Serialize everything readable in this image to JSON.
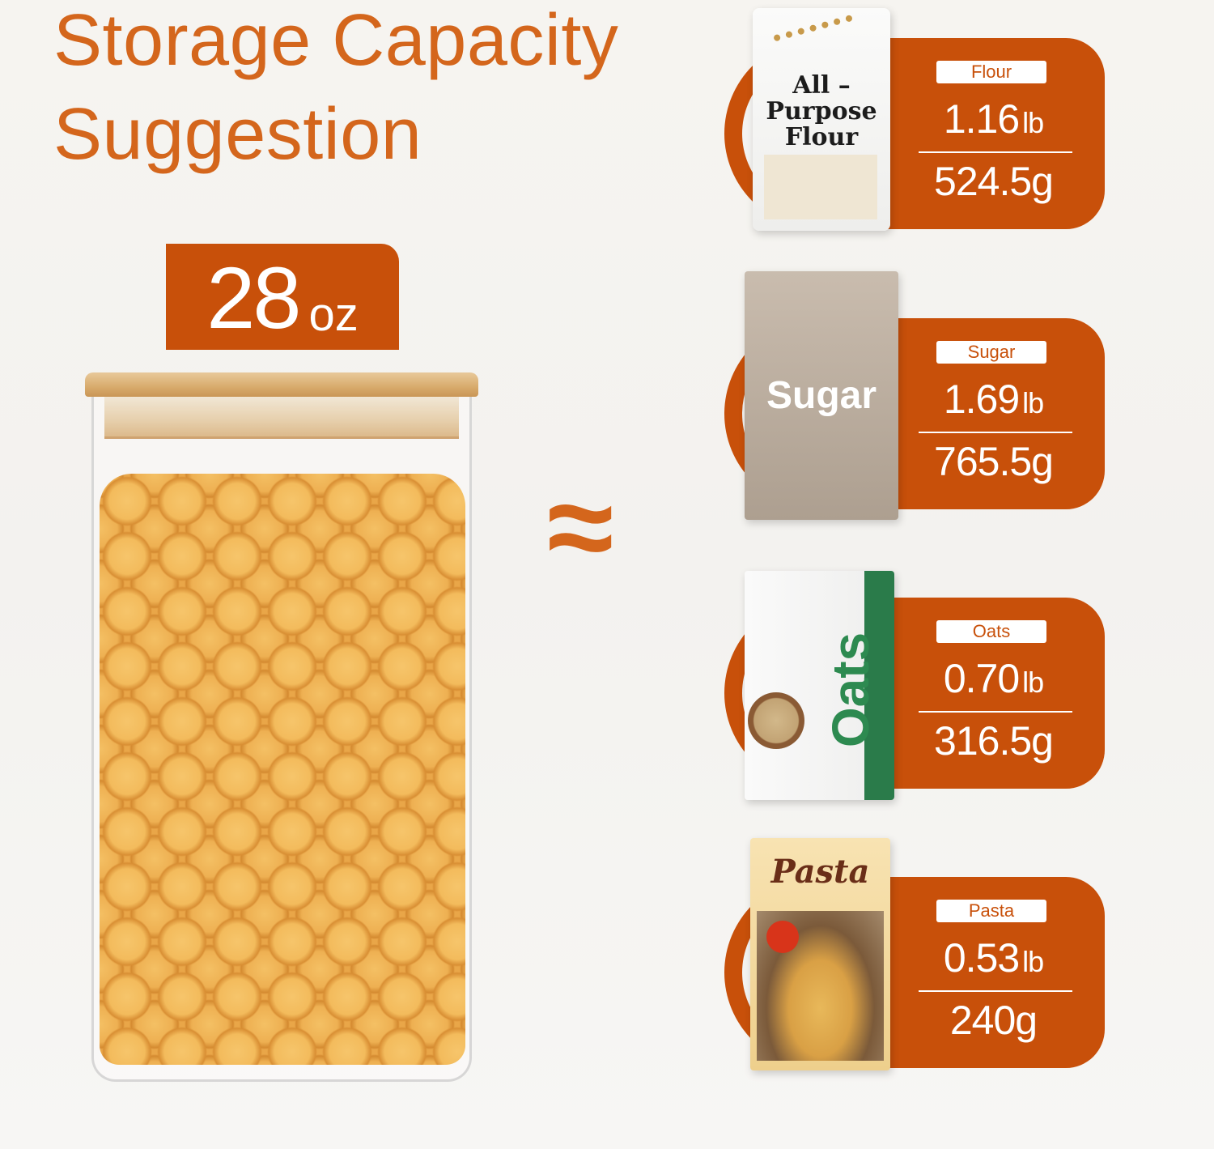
{
  "title": {
    "line1": "Storage Capacity",
    "line2": "Suggestion"
  },
  "capacity": {
    "value": "28",
    "unit": "oz"
  },
  "approx_symbol": "≈",
  "accent_color": "#c8500a",
  "title_color": "#d4661c",
  "items": [
    {
      "label": "Flour",
      "lb": "1.16",
      "lb_unit": "lb",
      "grams": "524.5g",
      "package_text": "All – Purpose Flour"
    },
    {
      "label": "Sugar",
      "lb": "1.69",
      "lb_unit": "lb",
      "grams": "765.5g",
      "package_text": "Sugar"
    },
    {
      "label": "Oats",
      "lb": "0.70",
      "lb_unit": "lb",
      "grams": "316.5g",
      "package_text": "Oats"
    },
    {
      "label": "Pasta",
      "lb": "0.53",
      "lb_unit": "lb",
      "grams": "240g",
      "package_text": "Pasta"
    }
  ]
}
